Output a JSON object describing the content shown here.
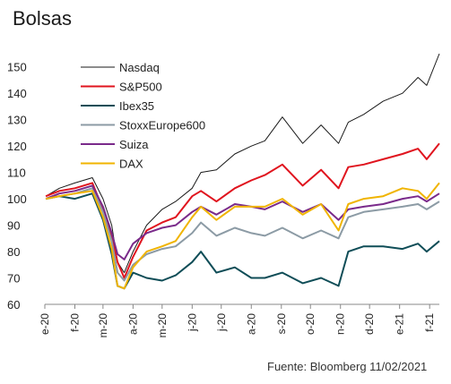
{
  "title": "Bolsas",
  "source": "Fuente: Bloomberg 11/02/2021",
  "chart_data": {
    "type": "line",
    "title": "Bolsas",
    "ylim": [
      60,
      155
    ],
    "yticks": [
      60,
      70,
      80,
      90,
      100,
      110,
      120,
      130,
      140,
      150
    ],
    "xlim": [
      "2020-01-01",
      "2021-02-11"
    ],
    "x_tick_labels": [
      "e-20",
      "f-20",
      "m-20",
      "a-20",
      "m-20",
      "j-20",
      "j-20",
      "a-20",
      "s-20",
      "o-20",
      "n-20",
      "d-20",
      "e-21",
      "f-21"
    ],
    "x_tick_dates": [
      "2020-01-01",
      "2020-02-01",
      "2020-03-01",
      "2020-04-01",
      "2020-05-01",
      "2020-06-01",
      "2020-07-01",
      "2020-08-01",
      "2020-09-01",
      "2020-10-01",
      "2020-11-01",
      "2020-12-01",
      "2021-01-01",
      "2021-02-01"
    ],
    "grid": false,
    "legend_position": "top-center",
    "x": [
      "2020-01-02",
      "2020-01-16",
      "2020-02-01",
      "2020-02-19",
      "2020-03-01",
      "2020-03-10",
      "2020-03-16",
      "2020-03-23",
      "2020-04-01",
      "2020-04-15",
      "2020-05-01",
      "2020-05-15",
      "2020-06-01",
      "2020-06-10",
      "2020-06-26",
      "2020-07-15",
      "2020-08-01",
      "2020-08-15",
      "2020-09-02",
      "2020-09-23",
      "2020-10-12",
      "2020-10-30",
      "2020-11-09",
      "2020-11-25",
      "2020-12-15",
      "2021-01-04",
      "2021-01-20",
      "2021-01-29",
      "2021-02-11"
    ],
    "series": [
      {
        "name": "Nasdaq",
        "color": "#1a1a1a",
        "values": [
          101,
          104,
          106,
          108,
          100,
          90,
          76,
          72,
          80,
          90,
          96,
          99,
          104,
          110,
          111,
          117,
          120,
          122,
          131,
          121,
          128,
          121,
          129,
          132,
          137,
          140,
          146,
          143,
          155
        ]
      },
      {
        "name": "S&P500",
        "color": "#e0141e",
        "values": [
          101,
          103,
          104,
          106,
          96,
          86,
          76,
          70,
          78,
          88,
          91,
          93,
          101,
          103,
          99,
          104,
          107,
          109,
          113,
          105,
          111,
          104,
          112,
          113,
          115,
          117,
          119,
          115,
          121
        ]
      },
      {
        "name": "Ibex35",
        "color": "#0f4d57",
        "values": [
          100,
          101,
          100,
          102,
          92,
          79,
          67,
          66,
          72,
          70,
          69,
          71,
          76,
          80,
          72,
          74,
          70,
          70,
          72,
          68,
          70,
          67,
          80,
          82,
          82,
          81,
          83,
          80,
          84
        ]
      },
      {
        "name": "StoxxEurope600",
        "color": "#8c9ba5",
        "values": [
          100,
          101,
          102,
          104,
          95,
          84,
          72,
          69,
          75,
          79,
          81,
          82,
          87,
          91,
          86,
          89,
          87,
          86,
          89,
          85,
          88,
          85,
          93,
          95,
          96,
          97,
          98,
          96,
          99
        ]
      },
      {
        "name": "Suiza",
        "color": "#7a2a8a",
        "values": [
          100,
          102,
          103,
          105,
          97,
          87,
          79,
          77,
          83,
          87,
          89,
          90,
          95,
          97,
          94,
          98,
          97,
          96,
          99,
          95,
          98,
          92,
          96,
          97,
          98,
          100,
          101,
          99,
          102
        ]
      },
      {
        "name": "DAX",
        "color": "#f0b400",
        "values": [
          100,
          101,
          102,
          103,
          93,
          81,
          67,
          66,
          74,
          80,
          82,
          84,
          93,
          97,
          92,
          97,
          97,
          97,
          100,
          94,
          98,
          88,
          98,
          100,
          101,
          104,
          103,
          100,
          106
        ]
      }
    ]
  }
}
